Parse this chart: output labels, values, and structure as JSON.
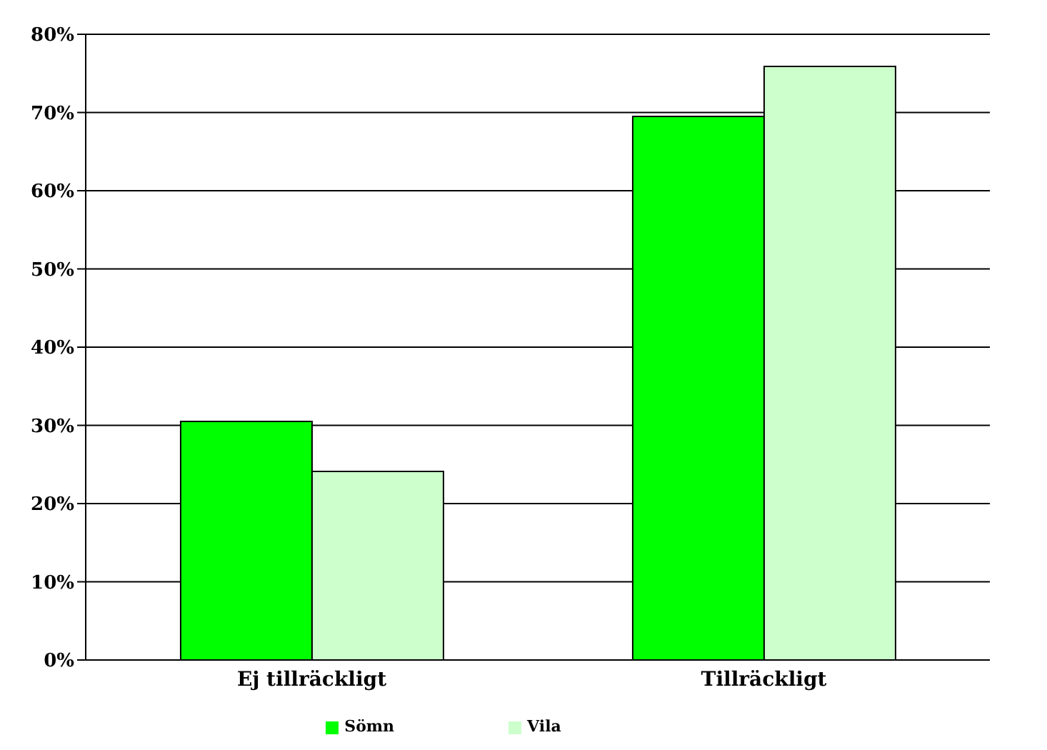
{
  "chart_data": {
    "type": "bar",
    "categories": [
      "Ej tillräckligt",
      "Tillräckligt"
    ],
    "series": [
      {
        "name": "Sömn",
        "color": "#00ff00",
        "values": [
          30.5,
          69.5
        ]
      },
      {
        "name": "Vila",
        "color": "#ccffcc",
        "values": [
          24.1,
          75.9
        ]
      }
    ],
    "ylim": [
      0,
      80
    ],
    "yticks": [
      {
        "value": 0,
        "label": "0%"
      },
      {
        "value": 10,
        "label": "10%"
      },
      {
        "value": 20,
        "label": "20%"
      },
      {
        "value": 30,
        "label": "30%"
      },
      {
        "value": 40,
        "label": "40%"
      },
      {
        "value": 50,
        "label": "50%"
      },
      {
        "value": 60,
        "label": "60%"
      },
      {
        "value": 70,
        "label": "70%"
      },
      {
        "value": 80,
        "label": "80%"
      }
    ],
    "grid": "y",
    "legend": "bottom"
  }
}
